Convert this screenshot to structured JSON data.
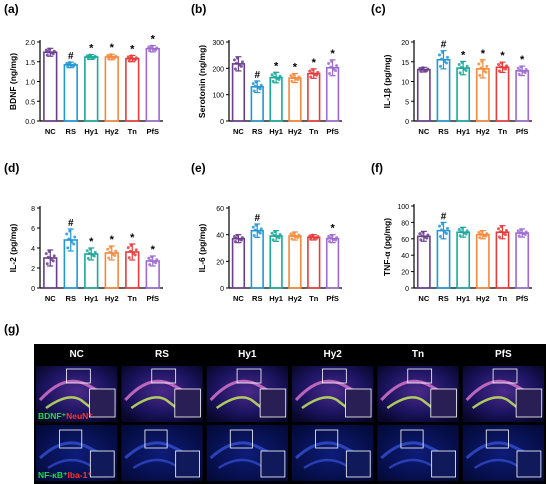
{
  "panel_labels": [
    "(a)",
    "(b)",
    "(c)",
    "(d)",
    "(e)",
    "(f)",
    "(g)"
  ],
  "groups": [
    "NC",
    "RS",
    "Hy1",
    "Hy2",
    "Tn",
    "PfS"
  ],
  "colors": {
    "NC": "#6a3d8f",
    "RS": "#2196d8",
    "Hy1": "#19a89a",
    "Hy2": "#f5883a",
    "Tn": "#e83a3a",
    "PfS": "#9b6bd0",
    "background_dark": "#000000",
    "header_text": "#ffffff",
    "bdnf_label": "#22dd44",
    "neun_label": "#ff3333",
    "nfkb_label": "#22dd44",
    "iba1_label": "#ff3333"
  },
  "chart_data": [
    {
      "id": "a",
      "type": "bar",
      "ylabel": "BDNF (ng/mg)",
      "ylim": [
        0,
        2.0
      ],
      "yticks": [
        "0.0",
        "0.5",
        "1.0",
        "1.5",
        "2.0"
      ],
      "categories": [
        "NC",
        "RS",
        "Hy1",
        "Hy2",
        "Tn",
        "PfS"
      ],
      "values": [
        1.74,
        1.42,
        1.62,
        1.62,
        1.58,
        1.83
      ],
      "errors": [
        0.1,
        0.07,
        0.06,
        0.07,
        0.08,
        0.08
      ],
      "annotations": [
        "",
        "#",
        "*",
        "*",
        "*",
        "*"
      ]
    },
    {
      "id": "b",
      "type": "bar",
      "ylabel": "Serotonin (ng/mg)",
      "ylim": [
        0,
        300
      ],
      "yticks": [
        "0",
        "100",
        "200",
        "300"
      ],
      "categories": [
        "NC",
        "RS",
        "Hy1",
        "Hy2",
        "Tn",
        "PfS"
      ],
      "values": [
        217,
        130,
        165,
        163,
        180,
        202
      ],
      "errors": [
        27,
        22,
        20,
        17,
        18,
        30
      ],
      "annotations": [
        "",
        "#",
        "*",
        "*",
        "*",
        "*"
      ]
    },
    {
      "id": "c",
      "type": "bar",
      "ylabel": "IL-1β (pg/mg)",
      "ylim": [
        0,
        20
      ],
      "yticks": [
        "0",
        "5",
        "10",
        "15",
        "20"
      ],
      "categories": [
        "NC",
        "RS",
        "Hy1",
        "Hy2",
        "Tn",
        "PfS"
      ],
      "values": [
        13.0,
        15.5,
        13.4,
        13.2,
        13.6,
        12.7
      ],
      "errors": [
        0.6,
        2.3,
        1.7,
        2.3,
        1.3,
        1.2
      ],
      "annotations": [
        "",
        "#",
        "*",
        "*",
        "*",
        "*"
      ]
    },
    {
      "id": "d",
      "type": "bar",
      "ylabel": "IL-2 (pg/mg)",
      "ylim": [
        0,
        8
      ],
      "yticks": [
        "0",
        "2",
        "4",
        "6",
        "8"
      ],
      "categories": [
        "NC",
        "RS",
        "Hy1",
        "Hy2",
        "Tn",
        "PfS"
      ],
      "values": [
        3.0,
        4.8,
        3.4,
        3.5,
        3.6,
        2.7
      ],
      "errors": [
        0.8,
        1.1,
        0.6,
        0.7,
        0.8,
        0.5
      ],
      "annotations": [
        "",
        "#",
        "*",
        "*",
        "*",
        "*"
      ]
    },
    {
      "id": "e",
      "type": "bar",
      "ylabel": "IL-6 (pg/mg)",
      "ylim": [
        0,
        60
      ],
      "yticks": [
        "0",
        "20",
        "40",
        "60"
      ],
      "categories": [
        "NC",
        "RS",
        "Hy1",
        "Hy2",
        "Tn",
        "PfS"
      ],
      "values": [
        37,
        43,
        39,
        39,
        38,
        37
      ],
      "errors": [
        3,
        5,
        4,
        3,
        2,
        3
      ],
      "annotations": [
        "",
        "#",
        "",
        "",
        "",
        "*"
      ]
    },
    {
      "id": "f",
      "type": "bar",
      "ylabel": "TNF-α (pg/mg)",
      "ylim": [
        0,
        100
      ],
      "yticks": [
        "0",
        "20",
        "40",
        "60",
        "80",
        "100"
      ],
      "categories": [
        "NC",
        "RS",
        "Hy1",
        "Hy2",
        "Tn",
        "PfS"
      ],
      "values": [
        63,
        70,
        68,
        65,
        68,
        67
      ],
      "errors": [
        6,
        10,
        6,
        5,
        8,
        5
      ],
      "annotations": [
        "",
        "#",
        "",
        "",
        "",
        ""
      ]
    }
  ],
  "microscopy": {
    "column_headers": [
      "NC",
      "RS",
      "Hy1",
      "Hy2",
      "Tn",
      "PfS"
    ],
    "rows": [
      {
        "label_a": "BDNF",
        "label_b": "NeuN"
      },
      {
        "label_a": "NF-κB",
        "label_b": "Iba-1"
      }
    ]
  }
}
